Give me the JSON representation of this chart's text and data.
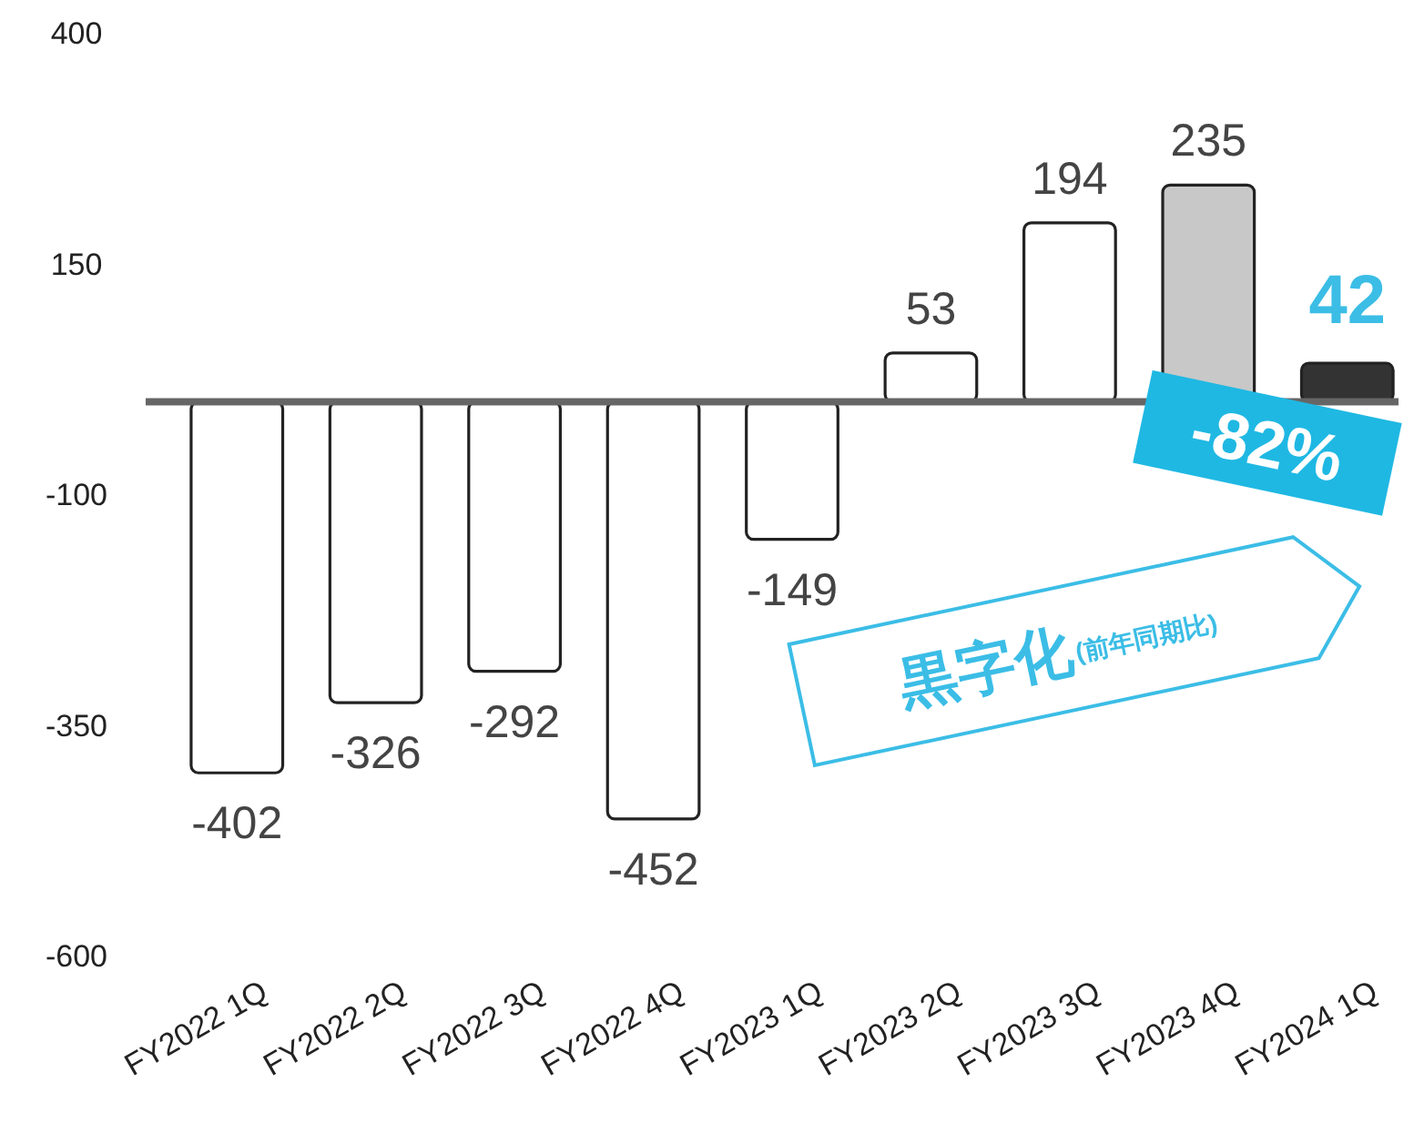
{
  "chart_data": {
    "type": "bar",
    "categories": [
      "FY2022 1Q",
      "FY2022 2Q",
      "FY2022 3Q",
      "FY2022 4Q",
      "FY2023 1Q",
      "FY2023 2Q",
      "FY2023 3Q",
      "FY2023 4Q",
      "FY2024 1Q"
    ],
    "values": [
      -402,
      -326,
      -292,
      -452,
      -149,
      53,
      194,
      235,
      42
    ],
    "colors": [
      "#ffffff",
      "#ffffff",
      "#ffffff",
      "#ffffff",
      "#ffffff",
      "#ffffff",
      "#ffffff",
      "#c8c8c8",
      "#333333"
    ],
    "ylim": [
      -600,
      400
    ],
    "yticks": [
      400,
      150,
      -100,
      -350,
      -600
    ],
    "data_labels": true,
    "grid": false,
    "annotations": [
      "-82%",
      "黒字化",
      "(前年同期比)"
    ]
  }
}
